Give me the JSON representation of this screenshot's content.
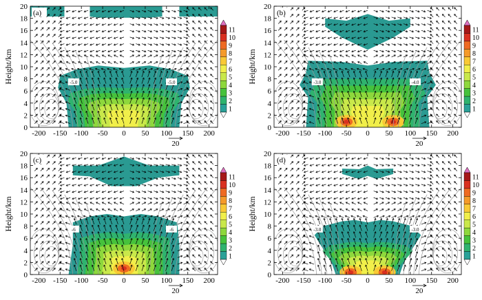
{
  "figure": {
    "type": "cross-section contour with vector field",
    "colorbar_ticks": [
      "1",
      "2",
      "3",
      "4",
      "5",
      "6",
      "7",
      "8",
      "9",
      "10",
      "11"
    ],
    "colorbar_colors": [
      "#2aa198",
      "#2fb36e",
      "#46c23c",
      "#8ed83c",
      "#c9e84a",
      "#f1ef4a",
      "#f9c935",
      "#f59a2a",
      "#ef6a22",
      "#d93020",
      "#a51818"
    ],
    "field_color": "#2a9a92",
    "contour_color": "#9a9a9a"
  },
  "chart_data": [
    {
      "type": "heatmap",
      "panel_label": "(a)",
      "ylabel": "Height/km",
      "xlim": [
        -220,
        220
      ],
      "ylim": [
        0,
        20
      ],
      "x_ticks": [
        "-200",
        "-150",
        "-100",
        "-50",
        "0",
        "50",
        "100",
        "150",
        "200"
      ],
      "y_ticks": [
        "0",
        "2",
        "4",
        "6",
        "8",
        "10",
        "12",
        "14",
        "16",
        "18",
        "20"
      ],
      "reference_vector": "20",
      "contour_labels": [
        "-5.0",
        "-5.0"
      ]
    },
    {
      "type": "heatmap",
      "panel_label": "(b)",
      "ylabel": "Height/km",
      "xlim": [
        -220,
        220
      ],
      "ylim": [
        0,
        20
      ],
      "x_ticks": [
        "-200",
        "-150",
        "-100",
        "-50",
        "0",
        "50",
        "100",
        "150",
        "200"
      ],
      "y_ticks": [
        "0",
        "2",
        "4",
        "6",
        "8",
        "10",
        "12",
        "14",
        "16",
        "18",
        "20"
      ],
      "reference_vector": "20",
      "contour_labels": [
        "-3.0",
        "-4.0"
      ]
    },
    {
      "type": "heatmap",
      "panel_label": "(c)",
      "ylabel": "Height/km",
      "xlim": [
        -220,
        220
      ],
      "ylim": [
        0,
        20
      ],
      "x_ticks": [
        "-200",
        "-150",
        "-100",
        "-50",
        "0",
        "50",
        "100",
        "150",
        "200"
      ],
      "y_ticks": [
        "0",
        "2",
        "4",
        "6",
        "8",
        "10",
        "12",
        "14",
        "16",
        "18",
        "20"
      ],
      "reference_vector": "20",
      "contour_labels": [
        "-6",
        "-6"
      ]
    },
    {
      "type": "heatmap",
      "panel_label": "(d)",
      "ylabel": "Height/km",
      "xlim": [
        -220,
        220
      ],
      "ylim": [
        0,
        20
      ],
      "x_ticks": [
        "-200",
        "-150",
        "-100",
        "-50",
        "0",
        "50",
        "100",
        "150",
        "200"
      ],
      "y_ticks": [
        "0",
        "2",
        "4",
        "6",
        "8",
        "10",
        "12",
        "14",
        "16",
        "18",
        "20"
      ],
      "reference_vector": "20",
      "contour_labels": [
        "-3.0",
        "-3.0"
      ]
    }
  ]
}
